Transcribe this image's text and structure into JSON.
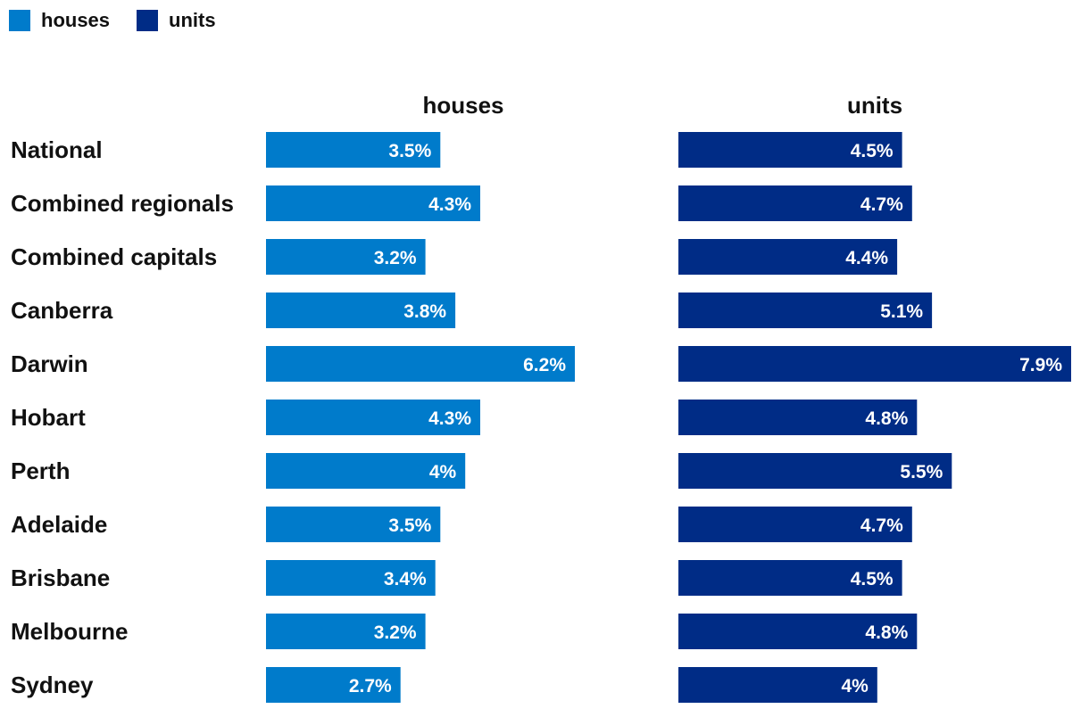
{
  "legend": {
    "items": [
      {
        "label": "houses",
        "color": "#007bcb"
      },
      {
        "label": "units",
        "color": "#002c86"
      }
    ]
  },
  "chart_data": {
    "type": "bar",
    "orientation": "horizontal",
    "title": "",
    "categories": [
      "National",
      "Combined regionals",
      "Combined capitals",
      "Canberra",
      "Darwin",
      "Hobart",
      "Perth",
      "Adelaide",
      "Brisbane",
      "Melbourne",
      "Sydney"
    ],
    "series": [
      {
        "name": "houses",
        "color": "#007bcb",
        "values": [
          3.5,
          4.3,
          3.2,
          3.8,
          6.2,
          4.3,
          4,
          3.5,
          3.4,
          3.2,
          2.7
        ],
        "labels": [
          "3.5%",
          "4.3%",
          "3.2%",
          "3.8%",
          "6.2%",
          "4.3%",
          "4%",
          "3.5%",
          "3.4%",
          "3.2%",
          "2.7%"
        ]
      },
      {
        "name": "units",
        "color": "#002c86",
        "values": [
          4.5,
          4.7,
          4.4,
          5.1,
          7.9,
          4.8,
          5.5,
          4.7,
          4.5,
          4.8,
          4
        ],
        "labels": [
          "4.5%",
          "4.7%",
          "4.4%",
          "5.1%",
          "7.9%",
          "4.8%",
          "5.5%",
          "4.7%",
          "4.5%",
          "4.8%",
          "4%"
        ]
      }
    ],
    "xlim": [
      0,
      7.9
    ],
    "grid": false,
    "legend_position": "top-left"
  }
}
